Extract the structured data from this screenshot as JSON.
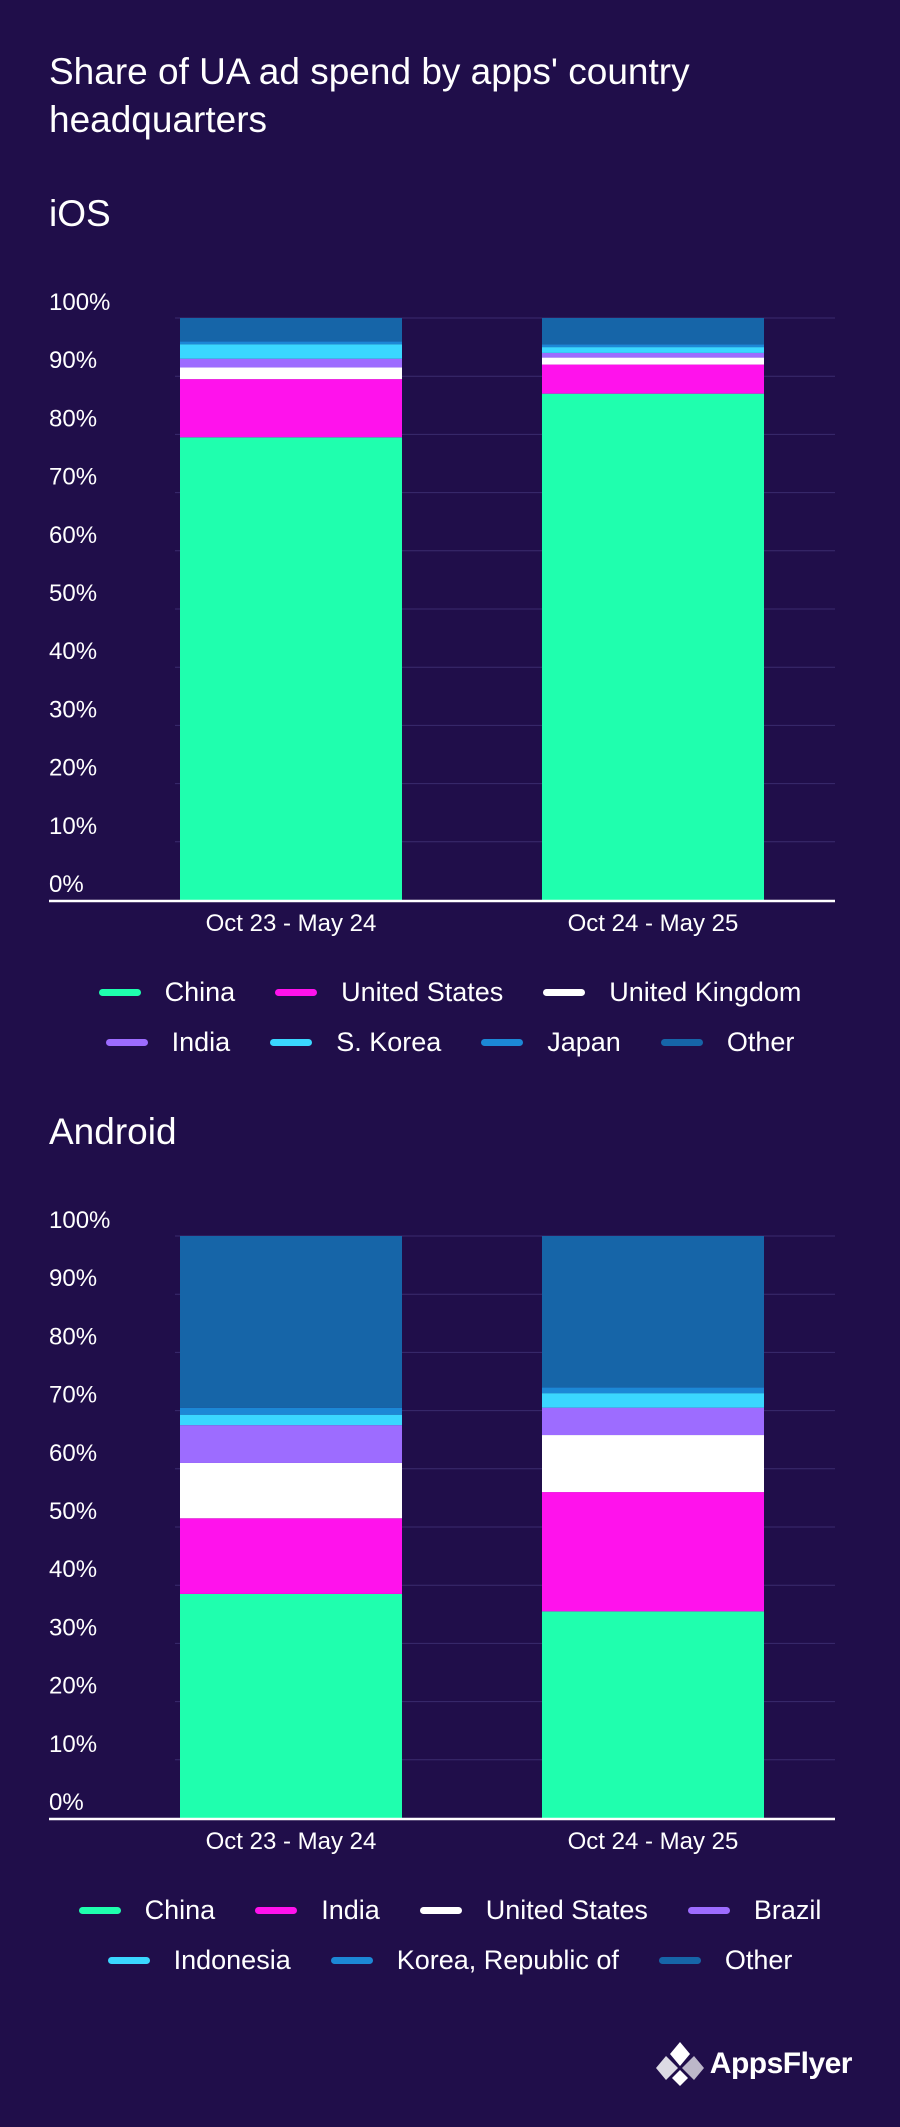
{
  "title": "Share of UA ad spend by apps' country headquarters",
  "chart_data": [
    {
      "type": "bar",
      "stacked": true,
      "title": "iOS",
      "categories": [
        "Oct 23 - May 24",
        "Oct 24 - May 25"
      ],
      "yticks": [
        "0%",
        "10%",
        "20%",
        "30%",
        "40%",
        "50%",
        "60%",
        "70%",
        "80%",
        "90%",
        "100%"
      ],
      "ylim": [
        0,
        100
      ],
      "grid": true,
      "legend_position": "bottom",
      "series": [
        {
          "name": "China",
          "color": "#1fffae",
          "values": [
            79.5,
            87
          ]
        },
        {
          "name": "United States",
          "color": "#ff12ec",
          "values": [
            10,
            5
          ]
        },
        {
          "name": "United Kingdom",
          "color": "#ffffff",
          "values": [
            2,
            1.2
          ]
        },
        {
          "name": "India",
          "color": "#9d6cff",
          "values": [
            1.5,
            0.8
          ]
        },
        {
          "name": "S. Korea",
          "color": "#3ad7ff",
          "values": [
            2.5,
            1
          ]
        },
        {
          "name": "Japan",
          "color": "#1c88d6",
          "values": [
            0.5,
            0.5
          ]
        },
        {
          "name": "Other",
          "color": "#1665a8",
          "values": [
            4,
            4.5
          ]
        }
      ]
    },
    {
      "type": "bar",
      "stacked": true,
      "title": "Android",
      "categories": [
        "Oct 23 - May 24",
        "Oct 24 - May 25"
      ],
      "yticks": [
        "0%",
        "10%",
        "20%",
        "30%",
        "40%",
        "50%",
        "60%",
        "70%",
        "80%",
        "90%",
        "100%"
      ],
      "ylim": [
        0,
        100
      ],
      "grid": true,
      "legend_position": "bottom",
      "series": [
        {
          "name": "China",
          "color": "#1fffae",
          "values": [
            38.5,
            35.5
          ]
        },
        {
          "name": "India",
          "color": "#ff12ec",
          "values": [
            13,
            20.5
          ]
        },
        {
          "name": "United States",
          "color": "#ffffff",
          "values": [
            9.5,
            9.8
          ]
        },
        {
          "name": "Brazil",
          "color": "#9d6cff",
          "values": [
            6.5,
            4.7
          ]
        },
        {
          "name": "Indonesia",
          "color": "#3ad7ff",
          "values": [
            1.8,
            2.5
          ]
        },
        {
          "name": "Korea, Republic of",
          "color": "#1c88d6",
          "values": [
            1.2,
            1
          ]
        },
        {
          "name": "Other",
          "color": "#1665a8",
          "values": [
            29.5,
            26
          ]
        }
      ]
    }
  ],
  "logo": {
    "text": "AppsFlyer"
  }
}
